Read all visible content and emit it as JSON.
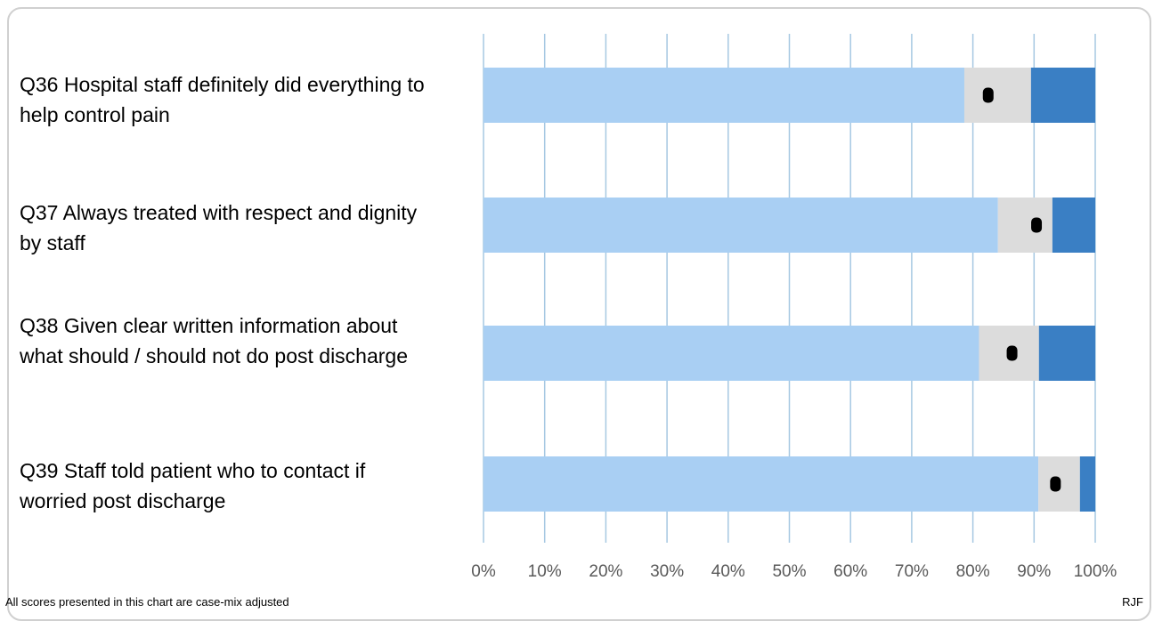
{
  "chart_data": {
    "type": "bar",
    "orientation": "horizontal",
    "stacked": true,
    "categories": [
      "Q36 Hospital staff definitely did everything to help control pain",
      "Q37 Always treated with respect and dignity by staff",
      "Q38 Given clear written information about what should / should not do post discharge",
      "Q39 Staff told patient who to contact if worried post discharge"
    ],
    "series": [
      {
        "values": [
          78.6,
          84.1,
          81.0,
          90.7
        ],
        "color": "#a9cff3"
      },
      {
        "values": [
          10.9,
          8.9,
          9.8,
          6.8
        ],
        "color": "#dcdcdc"
      },
      {
        "values": [
          10.5,
          7.0,
          9.2,
          2.5
        ],
        "color": "#3a7fc4"
      }
    ],
    "markers": [
      82.5,
      90.4,
      86.4,
      93.5
    ],
    "marker_color": "#000000",
    "xlim": [
      0,
      100
    ],
    "xticks": [
      "0%",
      "10%",
      "20%",
      "30%",
      "40%",
      "50%",
      "60%",
      "70%",
      "80%",
      "90%",
      "100%"
    ],
    "grid": true,
    "gridline_color": "#a6c8e2",
    "legend": "none"
  },
  "footer": {
    "note": "All scores presented in this chart are case-mix adjusted",
    "code": "RJF"
  }
}
